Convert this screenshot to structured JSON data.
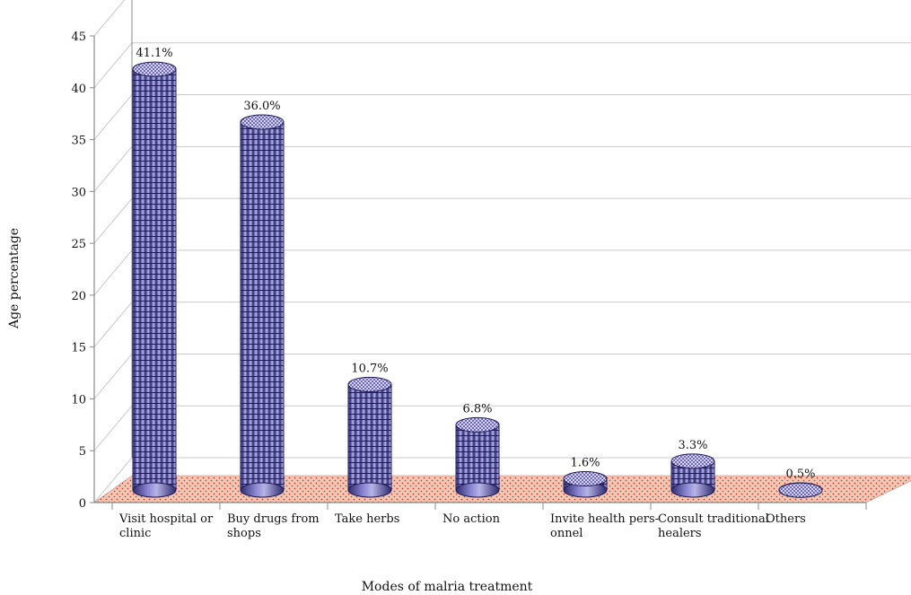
{
  "chart_data": {
    "type": "bar",
    "title": "",
    "xlabel": "Modes of malria treatment",
    "ylabel": "Age percentage",
    "ylim": [
      0,
      45
    ],
    "yticks": [
      0,
      5,
      10,
      15,
      20,
      25,
      30,
      35,
      40,
      45
    ],
    "grid": true,
    "categories": [
      [
        "Visit hospital  or",
        "clinic"
      ],
      [
        "Buy drugs from",
        "shops"
      ],
      [
        "Take herbs"
      ],
      [
        "No action"
      ],
      [
        "Invite health pers-",
        "onnel"
      ],
      [
        "Consult traditional",
        "healers"
      ],
      [
        "Others"
      ]
    ],
    "values": [
      41.1,
      36.0,
      10.7,
      6.8,
      1.6,
      3.3,
      0.5
    ],
    "data_labels": [
      "41.1%",
      "36.0%",
      "10.7%",
      "6.8%",
      "1.6%",
      "3.3%",
      "0.5%"
    ],
    "colors": {
      "bar": "#5b57a6",
      "bar_dark": "#2e2a6e",
      "bar_light": "#b6b3e6",
      "floor": "#f3c9b6",
      "floor_dot": "#d8432f",
      "grid": "#c8c8c8",
      "axis": "#8a8a8a"
    }
  }
}
